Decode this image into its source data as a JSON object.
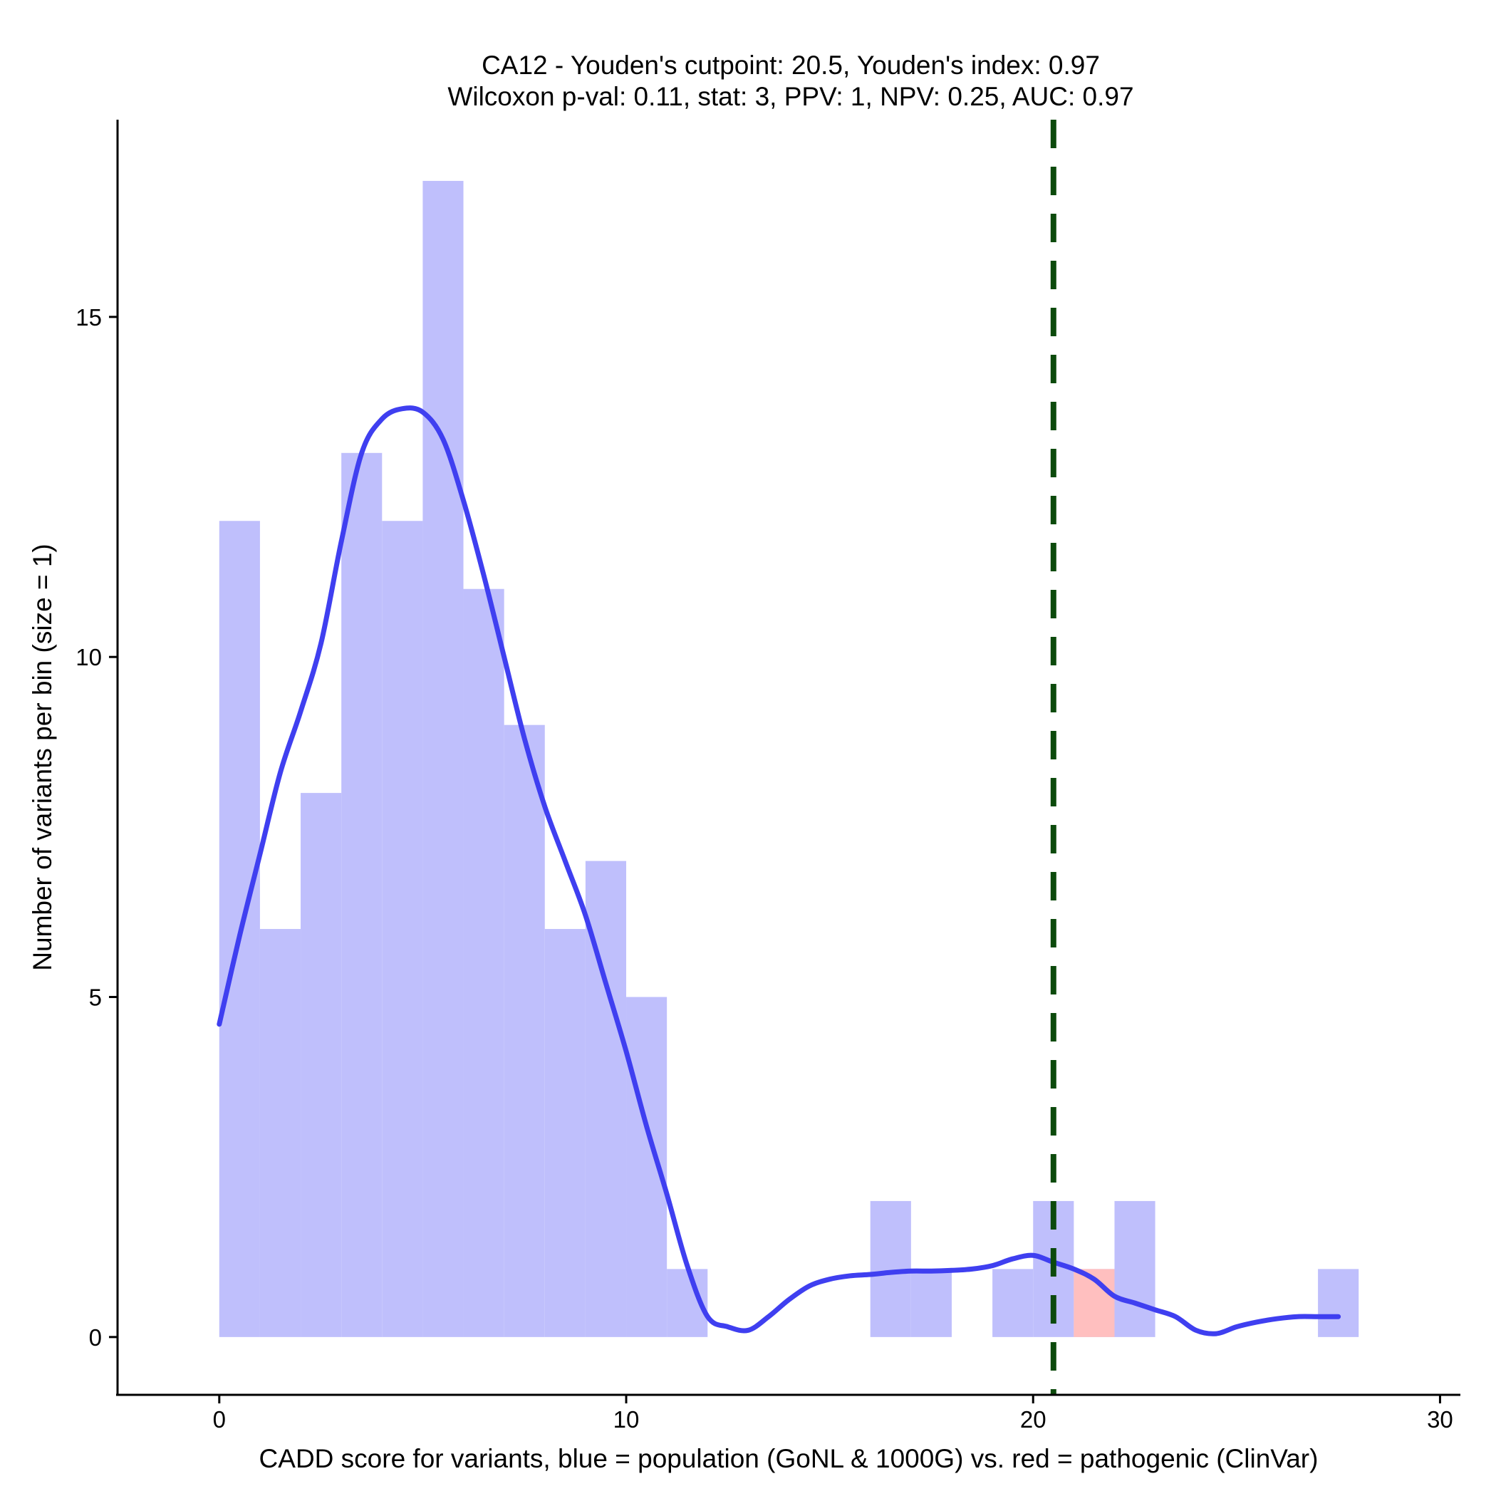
{
  "chart_data": {
    "type": "bar",
    "title": "CA12 - Youden's cutpoint: 20.5, Youden's index: 0.97",
    "subtitle": "Wilcoxon p-val: 0.11, stat: 3, PPV: 1, NPV: 0.25, AUC: 0.97",
    "xlabel": "CADD score for variants, blue = population (GoNL & 1000G) vs. red = pathogenic (ClinVar)",
    "ylabel": "Number of variants per bin (size = 1)",
    "xlim": [
      -2.5,
      30.5
    ],
    "ylim": [
      -0.85,
      17.9
    ],
    "x_ticks": [
      0,
      10,
      20,
      30
    ],
    "y_ticks": [
      0,
      5,
      10,
      15
    ],
    "bin_width": 1,
    "grid": false,
    "legend": "none",
    "colors": {
      "population": "#bfbffc",
      "pathogenic": "#ffbfbf",
      "density": "#3f3ff0",
      "cutpoint": "#0c4a0c"
    },
    "cutpoint": 20.5,
    "series": [
      {
        "bins": [
          {
            "x0": 0,
            "count": 12
          },
          {
            "x0": 1,
            "count": 6
          },
          {
            "x0": 2,
            "count": 8
          },
          {
            "x0": 3,
            "count": 13
          },
          {
            "x0": 4,
            "count": 12
          },
          {
            "x0": 5,
            "count": 17
          },
          {
            "x0": 6,
            "count": 11
          },
          {
            "x0": 7,
            "count": 9
          },
          {
            "x0": 8,
            "count": 6
          },
          {
            "x0": 9,
            "count": 7
          },
          {
            "x0": 10,
            "count": 5
          },
          {
            "x0": 11,
            "count": 1
          },
          {
            "x0": 16,
            "count": 2
          },
          {
            "x0": 17,
            "count": 1
          },
          {
            "x0": 19,
            "count": 1
          },
          {
            "x0": 20,
            "count": 2
          },
          {
            "x0": 21,
            "count": 1
          },
          {
            "x0": 22,
            "count": 2
          },
          {
            "x0": 27,
            "count": 1
          }
        ]
      },
      {
        "bins": [
          {
            "x0": 21,
            "count": 1
          }
        ]
      }
    ],
    "density": {
      "x": [
        0,
        0.5,
        1,
        1.5,
        2,
        2.5,
        3,
        3.5,
        4,
        4.5,
        5,
        5.5,
        6,
        6.5,
        7,
        7.5,
        8,
        8.5,
        9,
        9.5,
        10,
        10.5,
        11,
        11.5,
        12,
        12.5,
        13,
        13.5,
        14,
        14.5,
        15,
        15.5,
        16,
        16.5,
        17,
        17.5,
        18,
        18.5,
        19,
        19.5,
        20,
        20.5,
        21,
        21.5,
        22,
        22.5,
        23,
        23.5,
        24,
        24.5,
        25,
        25.5,
        26,
        26.5,
        27,
        27.5
      ],
      "y": [
        4.6,
        5.9,
        7.1,
        8.3,
        9.2,
        10.2,
        11.7,
        13.0,
        13.5,
        13.65,
        13.6,
        13.2,
        12.3,
        11.2,
        10.0,
        8.8,
        7.8,
        7.0,
        6.2,
        5.2,
        4.2,
        3.1,
        2.1,
        1.05,
        0.3,
        0.15,
        0.1,
        0.3,
        0.55,
        0.75,
        0.85,
        0.9,
        0.92,
        0.95,
        0.97,
        0.97,
        0.98,
        1.0,
        1.05,
        1.15,
        1.2,
        1.1,
        1.0,
        0.85,
        0.6,
        0.5,
        0.4,
        0.3,
        0.1,
        0.05,
        0.15,
        0.22,
        0.27,
        0.3,
        0.3,
        0.3
      ]
    }
  }
}
